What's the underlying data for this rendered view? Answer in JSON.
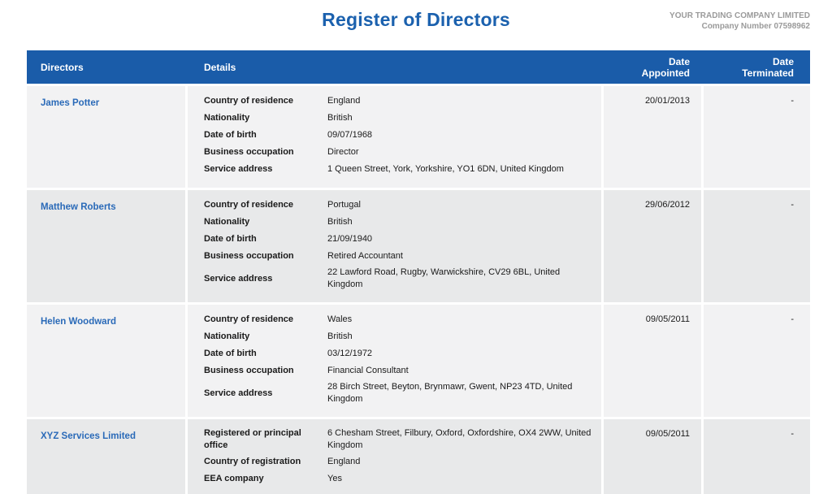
{
  "colors": {
    "header_blue": "#1a5ca9",
    "title_blue": "#1b61ae",
    "name_blue": "#2a6ab8",
    "row_light": "#f2f2f3",
    "row_dark": "#e8e9ea"
  },
  "header": {
    "title": "Register of Directors",
    "company_name": "YOUR TRADING COMPANY LIMITED",
    "company_number": "Company Number 07598962"
  },
  "table": {
    "columns": [
      {
        "label": "Directors"
      },
      {
        "label": "Details"
      },
      {
        "label": "Date\nAppointed"
      },
      {
        "label": "Date\nTerminated"
      }
    ]
  },
  "rows": [
    {
      "name": "James Potter",
      "details": [
        {
          "label": "Country of residence",
          "value": "England"
        },
        {
          "label": "Nationality",
          "value": "British"
        },
        {
          "label": "Date of birth",
          "value": "09/07/1968"
        },
        {
          "label": "Business occupation",
          "value": "Director"
        },
        {
          "label": "Service address",
          "value": "1 Queen Street, York, Yorkshire, YO1 6DN, United Kingdom"
        }
      ],
      "date_appointed": "20/01/2013",
      "date_terminated": "-"
    },
    {
      "name": "Matthew Roberts",
      "details": [
        {
          "label": "Country of residence",
          "value": "Portugal"
        },
        {
          "label": "Nationality",
          "value": "British"
        },
        {
          "label": "Date of birth",
          "value": "21/09/1940"
        },
        {
          "label": "Business occupation",
          "value": "Retired Accountant"
        },
        {
          "label": "Service address",
          "value": "22 Lawford Road, Rugby, Warwickshire, CV29 6BL, United Kingdom"
        }
      ],
      "date_appointed": "29/06/2012",
      "date_terminated": "-"
    },
    {
      "name": "Helen Woodward",
      "details": [
        {
          "label": "Country of residence",
          "value": "Wales"
        },
        {
          "label": "Nationality",
          "value": "British"
        },
        {
          "label": "Date of birth",
          "value": "03/12/1972"
        },
        {
          "label": "Business occupation",
          "value": "Financial Consultant"
        },
        {
          "label": "Service address",
          "value": "28 Birch Street, Beyton, Brynmawr, Gwent, NP23 4TD, United Kingdom"
        }
      ],
      "date_appointed": "09/05/2011",
      "date_terminated": "-"
    },
    {
      "name": "XYZ Services Limited",
      "details": [
        {
          "label": "Registered or principal office",
          "value": "6 Chesham Street, Filbury, Oxford, Oxfordshire, OX4 2WW, United Kingdom"
        },
        {
          "label": "Country of registration",
          "value": "England"
        },
        {
          "label": "EEA company",
          "value": "Yes"
        }
      ],
      "date_appointed": "09/05/2011",
      "date_terminated": "-"
    }
  ]
}
